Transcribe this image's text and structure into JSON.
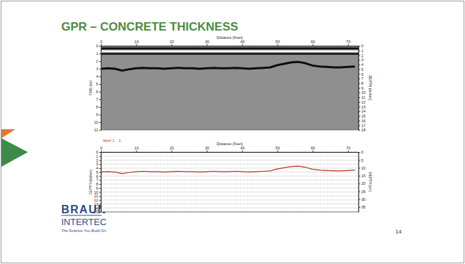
{
  "slide": {
    "title": "GPR – CONCRETE THICKNESS",
    "page": "14",
    "logo": {
      "name": "BRAUN",
      "subname": "INTERTEC",
      "tagline": "The Science You Build On."
    }
  },
  "chart_data": [
    {
      "type": "radargram",
      "x_label": "Distance (Feet)",
      "y_label": "TIME (ns)",
      "y2_label": "DEPTH (inches)",
      "xlim": [
        0,
        73
      ],
      "xticks": [
        0,
        10,
        20,
        30,
        40,
        50,
        60,
        70
      ],
      "ylim": [
        0,
        11
      ],
      "yticks": [
        0,
        1,
        2,
        3,
        4,
        5,
        6,
        7,
        8,
        9,
        10,
        11
      ],
      "y2lim": [
        0,
        18
      ],
      "y2ticks": [
        0,
        1,
        2,
        3,
        4,
        5,
        6,
        7,
        8,
        9,
        10,
        11,
        12,
        13,
        14,
        15,
        16,
        17,
        18
      ],
      "grid": false,
      "series": [
        {
          "x": [
            0,
            73
          ],
          "values": [
            0.35,
            0.35
          ],
          "color": "#111111"
        },
        {
          "x": [
            0,
            73
          ],
          "values": [
            0.7,
            0.7
          ],
          "color": "#f2f2f2"
        },
        {
          "x": [
            0,
            73
          ],
          "values": [
            1.05,
            1.05
          ],
          "color": "#222222"
        },
        {
          "x": [
            0,
            2,
            4,
            6,
            8,
            10,
            12,
            14,
            16,
            18,
            20,
            22,
            24,
            26,
            28,
            30,
            32,
            34,
            36,
            38,
            40,
            42,
            44,
            46,
            48,
            50,
            52,
            54,
            56,
            58,
            60,
            62,
            64,
            66,
            68,
            70,
            72
          ],
          "values": [
            3.0,
            2.94,
            3.0,
            3.24,
            3.06,
            2.94,
            2.88,
            2.94,
            2.94,
            3.0,
            2.94,
            2.88,
            2.94,
            2.94,
            3.0,
            2.94,
            2.88,
            2.94,
            2.94,
            2.88,
            2.94,
            3.0,
            2.94,
            2.88,
            2.82,
            2.52,
            2.34,
            2.16,
            2.1,
            2.28,
            2.58,
            2.7,
            2.76,
            2.82,
            2.82,
            2.76,
            2.7
          ],
          "color": "#0d0d0d"
        }
      ]
    },
    {
      "type": "line",
      "annotations": [
        "layer 1",
        "1"
      ],
      "x_label": "Distance (Feet)",
      "y_label": "DEPTH (inches)",
      "y2_label": "DEPTH (cm)",
      "x": [
        0,
        2,
        4,
        6,
        8,
        10,
        12,
        14,
        16,
        18,
        20,
        22,
        24,
        26,
        28,
        30,
        32,
        34,
        36,
        38,
        40,
        42,
        44,
        46,
        48,
        50,
        52,
        54,
        56,
        58,
        60,
        62,
        64,
        66,
        68,
        70,
        72
      ],
      "series": [
        {
          "values": [
            5.0,
            4.9,
            5.0,
            5.4,
            5.1,
            4.9,
            4.8,
            4.9,
            4.9,
            5.0,
            4.9,
            4.8,
            4.9,
            4.9,
            5.0,
            4.9,
            4.8,
            4.9,
            4.9,
            4.8,
            4.9,
            5.0,
            4.9,
            4.8,
            4.7,
            4.2,
            3.9,
            3.6,
            3.5,
            3.8,
            4.3,
            4.5,
            4.6,
            4.7,
            4.7,
            4.6,
            4.5
          ],
          "color": "#b03030"
        }
      ],
      "xlim": [
        0,
        73
      ],
      "xticks": [
        0,
        10,
        20,
        30,
        40,
        50,
        60,
        70
      ],
      "ylim": [
        0,
        15
      ],
      "yticks": [
        0,
        1,
        2,
        3,
        4,
        5,
        6,
        7,
        8,
        9,
        10,
        11,
        12,
        13,
        14,
        15
      ],
      "y2lim": [
        0,
        38.1
      ],
      "y2ticks": [
        0,
        5,
        10,
        15,
        20,
        25,
        30,
        35
      ],
      "grid": true
    }
  ]
}
